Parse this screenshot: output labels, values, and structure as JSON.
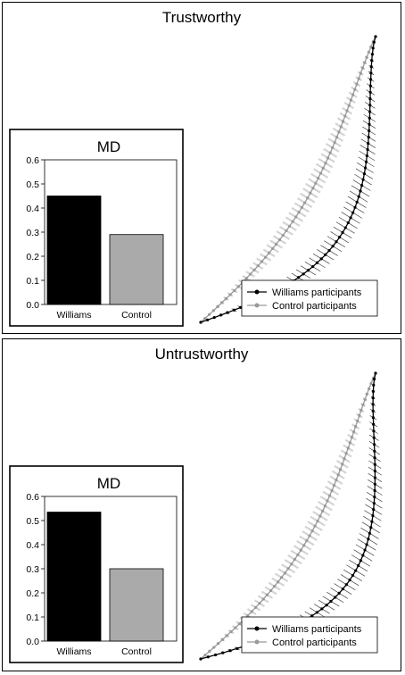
{
  "chart_data": [
    {
      "type": "line",
      "title": "Trustworthy",
      "legend": {
        "placement": "bottom-right",
        "entries": [
          {
            "name": "Williams participants",
            "color": "#000000"
          },
          {
            "name": "Control participants",
            "color": "#999999"
          }
        ]
      },
      "series": [
        {
          "name": "Williams participants",
          "color": "#000000",
          "bend": 0.62
        },
        {
          "name": "Control participants",
          "color": "#999999",
          "bend": 0.22
        }
      ],
      "inset": {
        "type": "bar",
        "title": "MD",
        "categories": [
          "Williams",
          "Control"
        ],
        "values": [
          0.45,
          0.29
        ],
        "colors": [
          "#000000",
          "#aaaaaa"
        ],
        "ylim": [
          0,
          0.6
        ],
        "yticks": [
          "0.0",
          "0.1",
          "0.2",
          "0.3",
          "0.4",
          "0.5",
          "0.6"
        ]
      }
    },
    {
      "type": "line",
      "title": "Untrustworthy",
      "legend": {
        "placement": "bottom-right",
        "entries": [
          {
            "name": "Williams participants",
            "color": "#000000"
          },
          {
            "name": "Control participants",
            "color": "#999999"
          }
        ]
      },
      "series": [
        {
          "name": "Williams participants",
          "color": "#000000",
          "bend": 0.72
        },
        {
          "name": "Control participants",
          "color": "#999999",
          "bend": 0.24
        }
      ],
      "inset": {
        "type": "bar",
        "title": "MD",
        "categories": [
          "Williams",
          "Control"
        ],
        "values": [
          0.535,
          0.3
        ],
        "colors": [
          "#000000",
          "#aaaaaa"
        ],
        "ylim": [
          0,
          0.6
        ],
        "yticks": [
          "0.0",
          "0.1",
          "0.2",
          "0.3",
          "0.4",
          "0.5",
          "0.6"
        ]
      }
    }
  ]
}
